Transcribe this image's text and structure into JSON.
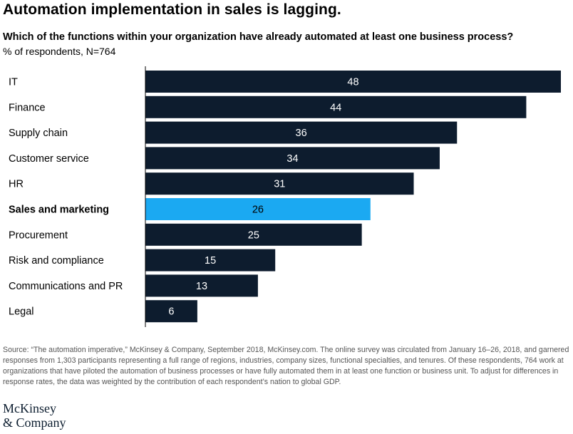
{
  "title": "Automation implementation in sales is lagging.",
  "subtitle": "Which of the functions within your organization have already automated at least one business process?",
  "unit_note": "% of respondents, N=764",
  "colors": {
    "bar": "#0d1c2e",
    "highlight": "#1ba9f2",
    "axis": "#000000",
    "label_on_dark": "#ffffff",
    "label_on_highlight": "#000000"
  },
  "chart_data": {
    "type": "bar",
    "orientation": "horizontal",
    "categories": [
      "IT",
      "Finance",
      "Supply chain",
      "Customer service",
      "HR",
      "Sales and marketing",
      "Procurement",
      "Risk and compliance",
      "Communications and PR",
      "Legal"
    ],
    "values": [
      48,
      44,
      36,
      34,
      31,
      26,
      25,
      15,
      13,
      6
    ],
    "highlight": "Sales and marketing",
    "xlim": [
      0,
      48
    ],
    "grid": false
  },
  "source": "Source: “The automation imperative,” McKinsey & Company, September 2018, McKinsey.com. The online survey was circulated from January 16–26, 2018, and garnered responses from 1,303 participants representing a full range of regions, industries, company sizes, functional specialties, and tenures. Of these respondents, 764 work at organizations that have piloted the automation of business processes or have fully automated them in at least one function or business unit. To adjust for differences in response rates, the data was weighted by the contribution of each respondent’s nation to global GDP.",
  "logo": {
    "line1": "McKinsey",
    "line2": "& Company"
  }
}
